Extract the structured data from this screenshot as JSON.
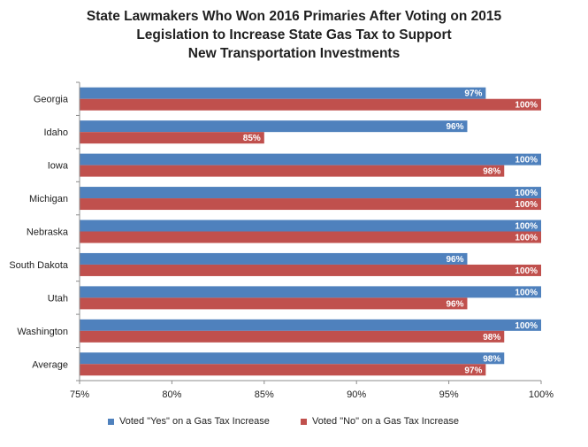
{
  "colors": {
    "yes": "#4f81bd",
    "no": "#c0504d",
    "axis": "#8c8c8c"
  },
  "chart_data": {
    "type": "bar",
    "orientation": "horizontal",
    "title_lines": [
      "State Lawmakers Who Won 2016 Primaries After Voting on 2015",
      "Legislation to Increase State Gas Tax to Support",
      "New Transportation Investments"
    ],
    "categories": [
      "Georgia",
      "Idaho",
      "Iowa",
      "Michigan",
      "Nebraska",
      "South Dakota",
      "Utah",
      "Washington",
      "Average"
    ],
    "series": [
      {
        "name": "Voted \"Yes\" on a Gas Tax Increase",
        "values": [
          97,
          96,
          100,
          100,
          100,
          96,
          100,
          100,
          98
        ]
      },
      {
        "name": "Voted \"No\" on a Gas Tax Increase",
        "values": [
          100,
          85,
          98,
          100,
          100,
          100,
          96,
          98,
          97
        ]
      }
    ],
    "xlim": [
      75,
      100
    ],
    "xticks": [
      75,
      80,
      85,
      90,
      95,
      100
    ],
    "tick_labels": [
      "75%",
      "80%",
      "85%",
      "90%",
      "95%",
      "100%"
    ],
    "data_label_suffix": "%",
    "grid": false,
    "legend_position": "bottom"
  }
}
